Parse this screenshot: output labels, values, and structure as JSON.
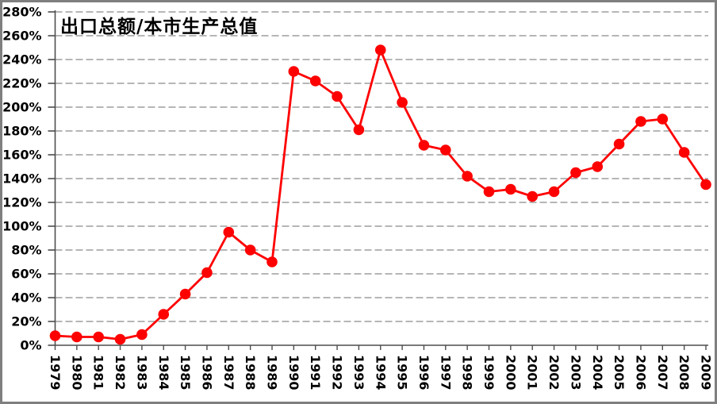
{
  "chart_data": {
    "type": "line",
    "title": "出口总额/本市生产总值",
    "xlabel": "",
    "ylabel": "",
    "categories": [
      "1979",
      "1980",
      "1981",
      "1982",
      "1983",
      "1984",
      "1985",
      "1986",
      "1987",
      "1988",
      "1989",
      "1990",
      "1991",
      "1992",
      "1993",
      "1994",
      "1995",
      "1996",
      "1997",
      "1998",
      "1999",
      "2000",
      "2001",
      "2002",
      "2003",
      "2004",
      "2005",
      "2006",
      "2007",
      "2008",
      "2009"
    ],
    "values": [
      8,
      7,
      7,
      5,
      9,
      26,
      43,
      61,
      95,
      80,
      70,
      230,
      222,
      209,
      181,
      248,
      204,
      168,
      164,
      142,
      129,
      131,
      125,
      129,
      145,
      150,
      169,
      188,
      190,
      162,
      135
    ],
    "unit": "%",
    "ylim": [
      0,
      280
    ],
    "ytick_step": 20,
    "ytick_suffix": "%",
    "x_label_rotation": 90,
    "grid": "dashed-horizontal",
    "legend": "none",
    "marker": "filled-circle",
    "colors": {
      "series": "#fe0000",
      "gridline": "#8a8a8a",
      "axis": "#4d4d4d",
      "tick": "#4d4d4d",
      "frame": "#7f7f7f",
      "label": "#000000",
      "background": "#ffffff"
    }
  }
}
